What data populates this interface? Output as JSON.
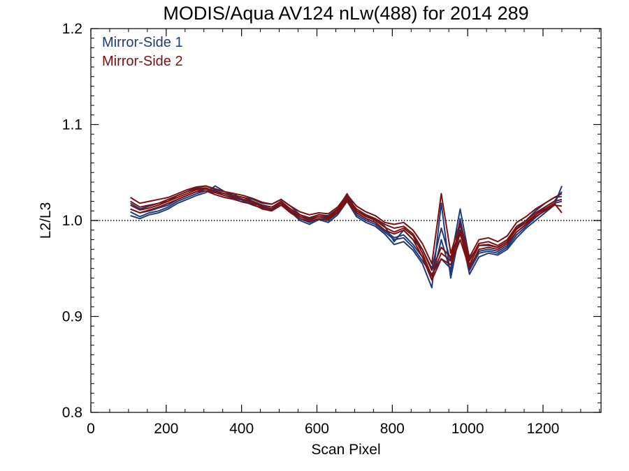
{
  "chart_data": {
    "type": "line",
    "title": "MODIS/Aqua AV124 nLw(488) for 2014 289",
    "xlabel": "Scan Pixel",
    "ylabel": "L2/L3",
    "xlim": [
      0,
      1354
    ],
    "ylim": [
      0.8,
      1.2
    ],
    "x_ticks": [
      0,
      200,
      400,
      600,
      800,
      1000,
      1200
    ],
    "y_ticks": [
      0.8,
      0.9,
      1.0,
      1.1,
      1.2
    ],
    "x_tick_labels": [
      "0",
      "200",
      "400",
      "600",
      "800",
      "1000",
      "1200"
    ],
    "y_tick_labels": [
      "0.8",
      "0.9",
      "1.0",
      "1.1",
      "1.2"
    ],
    "reference_line": 1.0,
    "legend_position": "top-left",
    "colors": {
      "Mirror-Side 1": "#1f3a7a",
      "Mirror-Side 2": "#7a1010"
    },
    "x": [
      105,
      130,
      155,
      180,
      205,
      230,
      255,
      280,
      305,
      330,
      355,
      380,
      405,
      430,
      455,
      480,
      505,
      530,
      555,
      580,
      605,
      630,
      655,
      680,
      705,
      730,
      755,
      780,
      805,
      830,
      855,
      880,
      905,
      930,
      955,
      980,
      1005,
      1030,
      1055,
      1080,
      1105,
      1130,
      1155,
      1180,
      1205,
      1230,
      1250
    ],
    "series": [
      {
        "name": "Mirror-Side 1",
        "values": [
          1.012,
          1.008,
          1.01,
          1.013,
          1.016,
          1.022,
          1.026,
          1.03,
          1.033,
          1.031,
          1.028,
          1.025,
          1.022,
          1.02,
          1.016,
          1.014,
          1.018,
          1.012,
          1.004,
          1.0,
          1.004,
          1.002,
          1.01,
          1.025,
          1.008,
          1.002,
          0.998,
          0.99,
          0.982,
          0.985,
          0.975,
          0.962,
          0.938,
          0.98,
          0.946,
          1.002,
          0.952,
          0.968,
          0.97,
          0.968,
          0.974,
          0.988,
          0.996,
          1.006,
          1.014,
          1.02,
          1.03
        ]
      },
      {
        "name": "Mirror-Side 1",
        "values": [
          1.005,
          1.002,
          1.006,
          1.008,
          1.012,
          1.018,
          1.022,
          1.026,
          1.029,
          1.036,
          1.03,
          1.028,
          1.02,
          1.016,
          1.013,
          1.011,
          1.02,
          1.009,
          1.0,
          0.996,
          1.001,
          0.998,
          1.006,
          1.02,
          1.004,
          0.998,
          0.994,
          0.986,
          0.975,
          0.978,
          0.969,
          0.955,
          0.93,
          1.018,
          0.94,
          0.99,
          0.944,
          0.962,
          0.966,
          0.964,
          0.97,
          0.982,
          0.992,
          1.0,
          1.008,
          1.016,
          1.036
        ]
      },
      {
        "name": "Mirror-Side 1",
        "values": [
          1.018,
          1.012,
          1.015,
          1.018,
          1.02,
          1.026,
          1.03,
          1.034,
          1.036,
          1.032,
          1.03,
          1.026,
          1.024,
          1.022,
          1.018,
          1.017,
          1.022,
          1.015,
          1.006,
          1.002,
          1.006,
          1.005,
          1.012,
          1.028,
          1.01,
          1.005,
          1.001,
          0.994,
          0.978,
          0.99,
          0.98,
          0.97,
          0.95,
          0.992,
          0.958,
          1.012,
          0.96,
          0.974,
          0.974,
          0.972,
          0.978,
          0.992,
          1.0,
          1.01,
          1.018,
          1.024,
          1.025
        ]
      },
      {
        "name": "Mirror-Side 1",
        "values": [
          1.009,
          1.004,
          1.008,
          1.01,
          1.014,
          1.02,
          1.024,
          1.028,
          1.031,
          1.029,
          1.026,
          1.023,
          1.021,
          1.018,
          1.015,
          1.012,
          1.016,
          1.01,
          1.002,
          0.998,
          1.002,
          1.0,
          1.008,
          1.022,
          1.006,
          1.0,
          0.996,
          0.988,
          0.98,
          0.982,
          0.972,
          0.958,
          0.944,
          0.96,
          0.95,
          0.996,
          0.948,
          0.966,
          0.968,
          0.966,
          0.972,
          0.985,
          0.994,
          1.003,
          1.011,
          1.018,
          1.02
        ]
      },
      {
        "name": "Mirror-Side 2",
        "values": [
          1.02,
          1.014,
          1.016,
          1.018,
          1.022,
          1.026,
          1.03,
          1.033,
          1.034,
          1.03,
          1.028,
          1.026,
          1.024,
          1.02,
          1.016,
          1.014,
          1.02,
          1.012,
          1.006,
          1.003,
          1.006,
          1.004,
          1.012,
          1.024,
          1.012,
          1.006,
          1.002,
          0.996,
          0.992,
          0.994,
          0.986,
          0.97,
          0.948,
          0.972,
          0.962,
          0.99,
          0.958,
          0.976,
          0.978,
          0.974,
          0.98,
          0.994,
          1.0,
          1.008,
          1.014,
          1.02,
          1.022
        ]
      },
      {
        "name": "Mirror-Side 2",
        "values": [
          1.012,
          1.008,
          1.011,
          1.014,
          1.018,
          1.022,
          1.026,
          1.03,
          1.031,
          1.027,
          1.024,
          1.022,
          1.019,
          1.017,
          1.012,
          1.01,
          1.016,
          1.008,
          1.002,
          0.999,
          1.002,
          1.001,
          1.008,
          1.02,
          1.008,
          1.002,
          0.998,
          0.99,
          0.986,
          0.99,
          0.98,
          0.962,
          0.938,
          0.96,
          0.954,
          0.98,
          0.95,
          0.97,
          0.972,
          0.97,
          0.976,
          0.988,
          0.996,
          1.004,
          1.01,
          1.016,
          1.015
        ]
      },
      {
        "name": "Mirror-Side 2",
        "values": [
          1.024,
          1.018,
          1.02,
          1.022,
          1.024,
          1.028,
          1.032,
          1.035,
          1.036,
          1.033,
          1.03,
          1.028,
          1.026,
          1.023,
          1.019,
          1.017,
          1.022,
          1.015,
          1.009,
          1.006,
          1.008,
          1.007,
          1.014,
          1.027,
          1.015,
          1.009,
          1.005,
          0.998,
          0.996,
          0.998,
          0.99,
          0.976,
          0.955,
          1.028,
          0.966,
          0.998,
          0.962,
          0.98,
          0.982,
          0.978,
          0.984,
          0.998,
          1.004,
          1.012,
          1.018,
          1.024,
          1.028
        ]
      },
      {
        "name": "Mirror-Side 2",
        "values": [
          1.016,
          1.011,
          1.013,
          1.016,
          1.02,
          1.024,
          1.028,
          1.032,
          1.033,
          1.029,
          1.026,
          1.024,
          1.022,
          1.019,
          1.014,
          1.012,
          1.018,
          1.01,
          1.004,
          1.001,
          1.004,
          1.003,
          1.01,
          1.022,
          1.01,
          1.004,
          1.0,
          0.993,
          0.988,
          0.992,
          0.984,
          0.966,
          0.942,
          0.966,
          0.958,
          0.986,
          0.954,
          0.974,
          0.975,
          0.972,
          0.978,
          0.991,
          0.998,
          1.006,
          1.012,
          1.018,
          1.008
        ]
      }
    ]
  }
}
